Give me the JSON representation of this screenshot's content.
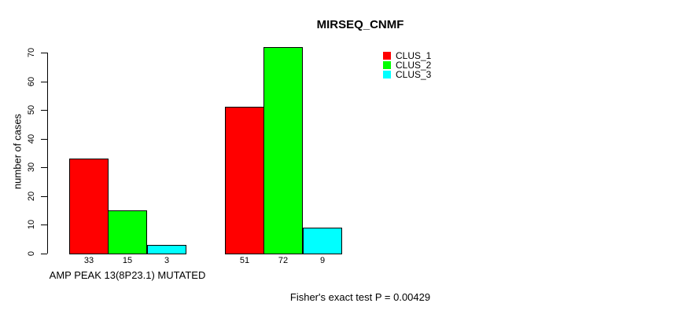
{
  "chart_data": {
    "type": "bar",
    "title": "MIRSEQ_CNMF",
    "ylabel": "number of cases",
    "xlabel": "",
    "ylim": [
      0,
      70
    ],
    "yticks": [
      0,
      10,
      20,
      30,
      40,
      50,
      60,
      70
    ],
    "grid": false,
    "legend_position": "top-right",
    "categories": [
      "AMP PEAK 13(8P23.1) MUTATED",
      ""
    ],
    "groups": [
      {
        "label": "AMP PEAK 13(8P23.1) MUTATED",
        "values": [
          33,
          15,
          3
        ]
      },
      {
        "label": "",
        "values": [
          51,
          72,
          9
        ]
      }
    ],
    "series": [
      {
        "name": "CLUS_1",
        "color": "#ff0000"
      },
      {
        "name": "CLUS_2",
        "color": "#00ff00"
      },
      {
        "name": "CLUS_3",
        "color": "#00ffff"
      }
    ],
    "bar_value_labels": [
      [
        33,
        15,
        3
      ],
      [
        51,
        72,
        9
      ]
    ],
    "bar_border_color": "#000000",
    "annotation": "Fisher's exact test P = 0.00429",
    "text_color": "#000000",
    "background_color": "#ffffff"
  }
}
